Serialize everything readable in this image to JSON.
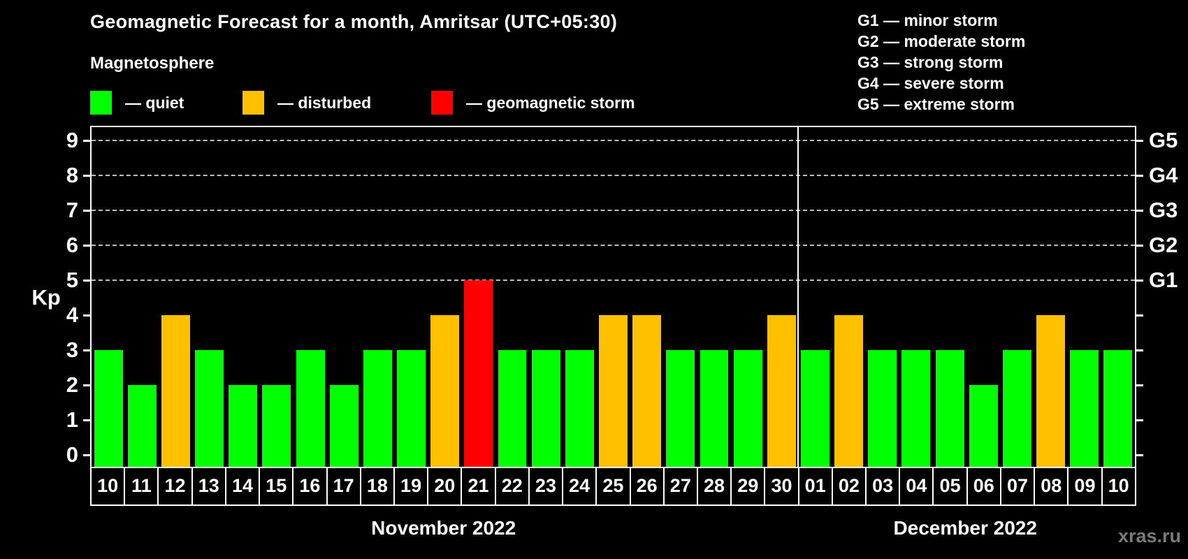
{
  "title": "Geomagnetic Forecast for a month, Amritsar (UTC+05:30)",
  "subtitle": "Magnetosphere",
  "legend": {
    "items": [
      {
        "label": "— quiet",
        "level": "quiet",
        "color": "#00ff00"
      },
      {
        "label": "— disturbed",
        "level": "disturbed",
        "color": "#ffc000"
      },
      {
        "label": "— geomagnetic storm",
        "level": "storm",
        "color": "#ff0000"
      }
    ]
  },
  "storm_scale_legend": {
    "items": [
      {
        "text": "G1 — minor storm"
      },
      {
        "text": "G2 — moderate storm"
      },
      {
        "text": "G3 — strong storm"
      },
      {
        "text": "G4 — severe storm"
      },
      {
        "text": "G5 — extreme storm"
      }
    ]
  },
  "watermark": "xras.ru",
  "chart_data": {
    "type": "bar",
    "ylabel": "Kp",
    "ylim": [
      0,
      9.4
    ],
    "yticks": [
      0,
      1,
      2,
      3,
      4,
      5,
      6,
      7,
      8,
      9
    ],
    "grid_values": [
      5,
      6,
      7,
      8,
      9
    ],
    "grid_on": true,
    "legend_position": "top",
    "right_axis": [
      {
        "value": 5,
        "label": "G1"
      },
      {
        "value": 6,
        "label": "G2"
      },
      {
        "value": 7,
        "label": "G3"
      },
      {
        "value": 8,
        "label": "G4"
      },
      {
        "value": 9,
        "label": "G5"
      }
    ],
    "level_colors": {
      "quiet": "#00ff00",
      "disturbed": "#ffc000",
      "storm": "#ff0000"
    },
    "months": [
      {
        "label": "November 2022"
      },
      {
        "label": "December 2022"
      }
    ],
    "bars": [
      {
        "day": "10",
        "month": 0,
        "kp": 3,
        "level": "quiet"
      },
      {
        "day": "11",
        "month": 0,
        "kp": 2,
        "level": "quiet"
      },
      {
        "day": "12",
        "month": 0,
        "kp": 4,
        "level": "disturbed"
      },
      {
        "day": "13",
        "month": 0,
        "kp": 3,
        "level": "quiet"
      },
      {
        "day": "14",
        "month": 0,
        "kp": 2,
        "level": "quiet"
      },
      {
        "day": "15",
        "month": 0,
        "kp": 2,
        "level": "quiet"
      },
      {
        "day": "16",
        "month": 0,
        "kp": 3,
        "level": "quiet"
      },
      {
        "day": "17",
        "month": 0,
        "kp": 2,
        "level": "quiet"
      },
      {
        "day": "18",
        "month": 0,
        "kp": 3,
        "level": "quiet"
      },
      {
        "day": "19",
        "month": 0,
        "kp": 3,
        "level": "quiet"
      },
      {
        "day": "20",
        "month": 0,
        "kp": 4,
        "level": "disturbed"
      },
      {
        "day": "21",
        "month": 0,
        "kp": 5,
        "level": "storm"
      },
      {
        "day": "22",
        "month": 0,
        "kp": 3,
        "level": "quiet"
      },
      {
        "day": "23",
        "month": 0,
        "kp": 3,
        "level": "quiet"
      },
      {
        "day": "24",
        "month": 0,
        "kp": 3,
        "level": "quiet"
      },
      {
        "day": "25",
        "month": 0,
        "kp": 4,
        "level": "disturbed"
      },
      {
        "day": "26",
        "month": 0,
        "kp": 4,
        "level": "disturbed"
      },
      {
        "day": "27",
        "month": 0,
        "kp": 3,
        "level": "quiet"
      },
      {
        "day": "28",
        "month": 0,
        "kp": 3,
        "level": "quiet"
      },
      {
        "day": "29",
        "month": 0,
        "kp": 3,
        "level": "quiet"
      },
      {
        "day": "30",
        "month": 0,
        "kp": 4,
        "level": "disturbed"
      },
      {
        "day": "01",
        "month": 1,
        "kp": 3,
        "level": "quiet"
      },
      {
        "day": "02",
        "month": 1,
        "kp": 4,
        "level": "disturbed"
      },
      {
        "day": "03",
        "month": 1,
        "kp": 3,
        "level": "quiet"
      },
      {
        "day": "04",
        "month": 1,
        "kp": 3,
        "level": "quiet"
      },
      {
        "day": "05",
        "month": 1,
        "kp": 3,
        "level": "quiet"
      },
      {
        "day": "06",
        "month": 1,
        "kp": 2,
        "level": "quiet"
      },
      {
        "day": "07",
        "month": 1,
        "kp": 3,
        "level": "quiet"
      },
      {
        "day": "08",
        "month": 1,
        "kp": 4,
        "level": "disturbed"
      },
      {
        "day": "09",
        "month": 1,
        "kp": 3,
        "level": "quiet"
      },
      {
        "day": "10",
        "month": 1,
        "kp": 3,
        "level": "quiet"
      }
    ]
  }
}
